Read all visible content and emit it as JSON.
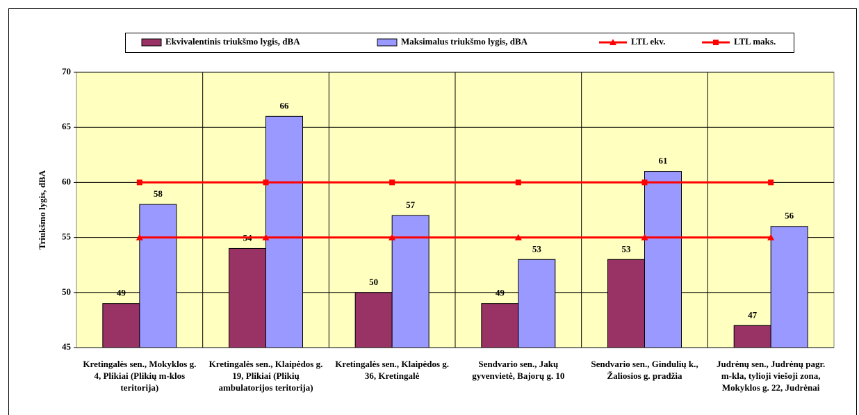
{
  "chart_data": {
    "type": "bar",
    "y_label": "Triukšmo lygis, dBA",
    "categories": [
      "Kretingalės sen., Mokyklos g. 4, Plikiai (Plikių m-klos teritorija)",
      "Kretingalės sen., Klaipėdos g. 19, Plikiai (Plikių ambulatorijos teritorija)",
      "Kretingalės sen., Klaipėdos g. 36, Kretingalė",
      "Sendvario sen., Jakų gyvenvietė, Bajorų g. 10",
      "Sendvario sen., Gindulių k., Žaliosios g. pradžia",
      "Judrėnų sen., Judrėnų pagr. m-kla, tylioji viešoji zona, Mokyklos g. 22, Judrėnai"
    ],
    "series": [
      {
        "name": "Ekvivalentinis triukšmo lygis, dBA",
        "color": "#993366",
        "type": "bar",
        "values": [
          49,
          54,
          50,
          49,
          53,
          47
        ]
      },
      {
        "name": "Maksimalus triukšmo lygis, dBA",
        "color": "#9999ff",
        "type": "bar",
        "values": [
          58,
          66,
          57,
          53,
          61,
          56
        ]
      },
      {
        "name": "LTL ekv.",
        "color": "#ff0000",
        "type": "line",
        "marker": "triangle",
        "values": [
          55,
          55,
          55,
          55,
          55,
          55
        ]
      },
      {
        "name": "LTL maks.",
        "color": "#ff0000",
        "type": "line",
        "marker": "square",
        "values": [
          60,
          60,
          60,
          60,
          60,
          60
        ]
      }
    ],
    "ylim": [
      45,
      70
    ],
    "yticks": [
      45,
      50,
      55,
      60,
      65,
      70
    ],
    "grid": true,
    "data_labels": true,
    "legend": "top"
  }
}
